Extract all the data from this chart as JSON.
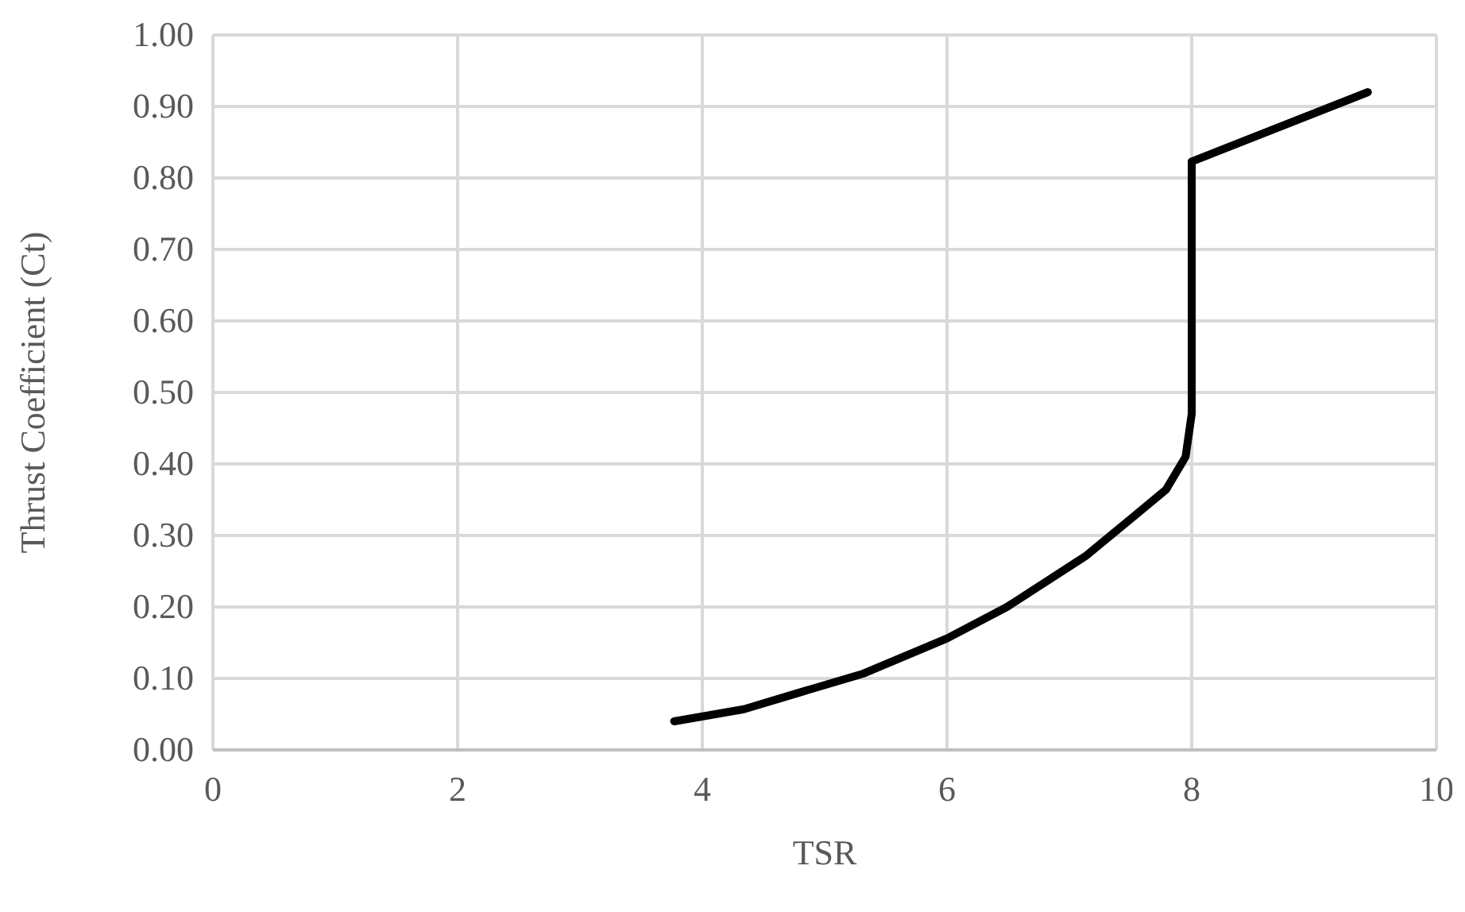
{
  "chart_data": {
    "type": "line",
    "xlabel": "TSR",
    "ylabel": "Thrust Coefficient (Ct)",
    "x": [
      3.77,
      4.34,
      4.77,
      5.32,
      6.0,
      6.49,
      7.14,
      7.53,
      7.79,
      7.95,
      8.0,
      8.0,
      9.44
    ],
    "series": [
      {
        "color": "#000000",
        "values": [
          0.04,
          0.057,
          0.079,
          0.107,
          0.156,
          0.2,
          0.272,
          0.327,
          0.364,
          0.41,
          0.47,
          0.823,
          0.92
        ]
      }
    ],
    "xlim": [
      0,
      10
    ],
    "xticks": [
      0,
      2,
      4,
      6,
      8,
      10
    ],
    "ylim": [
      0,
      1
    ],
    "yticks": [
      {
        "value": 0,
        "label": "0.00"
      },
      {
        "value": 0.1,
        "label": "0.10"
      },
      {
        "value": 0.2,
        "label": "0.20"
      },
      {
        "value": 0.3,
        "label": "0.30"
      },
      {
        "value": 0.4,
        "label": "0.40"
      },
      {
        "value": 0.5,
        "label": "0.50"
      },
      {
        "value": 0.6,
        "label": "0.60"
      },
      {
        "value": 0.7,
        "label": "0.70"
      },
      {
        "value": 0.8,
        "label": "0.80"
      },
      {
        "value": 0.9,
        "label": "0.90"
      },
      {
        "value": 1,
        "label": "1.00"
      }
    ],
    "grid": true,
    "marker": "none",
    "line_style": "solid"
  }
}
